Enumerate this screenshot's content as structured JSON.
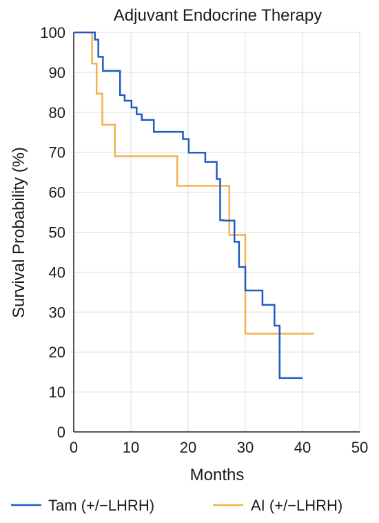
{
  "chart_data": {
    "type": "line",
    "step": true,
    "title": "Adjuvant Endocrine Therapy",
    "xlabel": "Months",
    "ylabel": "Survival Probability (%)",
    "xlim": [
      0,
      50
    ],
    "ylim": [
      0,
      100
    ],
    "xticks": [
      0,
      10,
      20,
      30,
      40,
      50
    ],
    "yticks": [
      0,
      10,
      20,
      30,
      40,
      50,
      60,
      70,
      80,
      90,
      100
    ],
    "grid": true,
    "legend_position": "bottom",
    "series": [
      {
        "name": "Tam (+/−LHRH)",
        "color": "#1f5bc4",
        "x": [
          0,
          3.7,
          4.3,
          5.1,
          8.1,
          8.9,
          10.1,
          11.0,
          11.9,
          14.0,
          19.1,
          20.1,
          23.0,
          25.0,
          25.6,
          26.2,
          28.1,
          28.9,
          30.0,
          33.0,
          35.1,
          36.0,
          40.0
        ],
        "y": [
          100,
          98.2,
          93.9,
          90.4,
          84.3,
          82.9,
          81.2,
          79.5,
          78.1,
          75.1,
          73.3,
          69.9,
          67.6,
          63.3,
          53.0,
          52.9,
          47.6,
          41.3,
          35.4,
          31.8,
          26.6,
          13.5,
          13.5
        ]
      },
      {
        "name": "AI (+/−LHRH)",
        "color": "#f5b04c",
        "x": [
          0,
          3.2,
          4.0,
          5.0,
          7.2,
          18.1,
          27.2,
          30.0,
          42.0
        ],
        "y": [
          100,
          92.2,
          84.7,
          76.9,
          69.0,
          61.6,
          49.3,
          24.6,
          24.6
        ]
      }
    ]
  }
}
